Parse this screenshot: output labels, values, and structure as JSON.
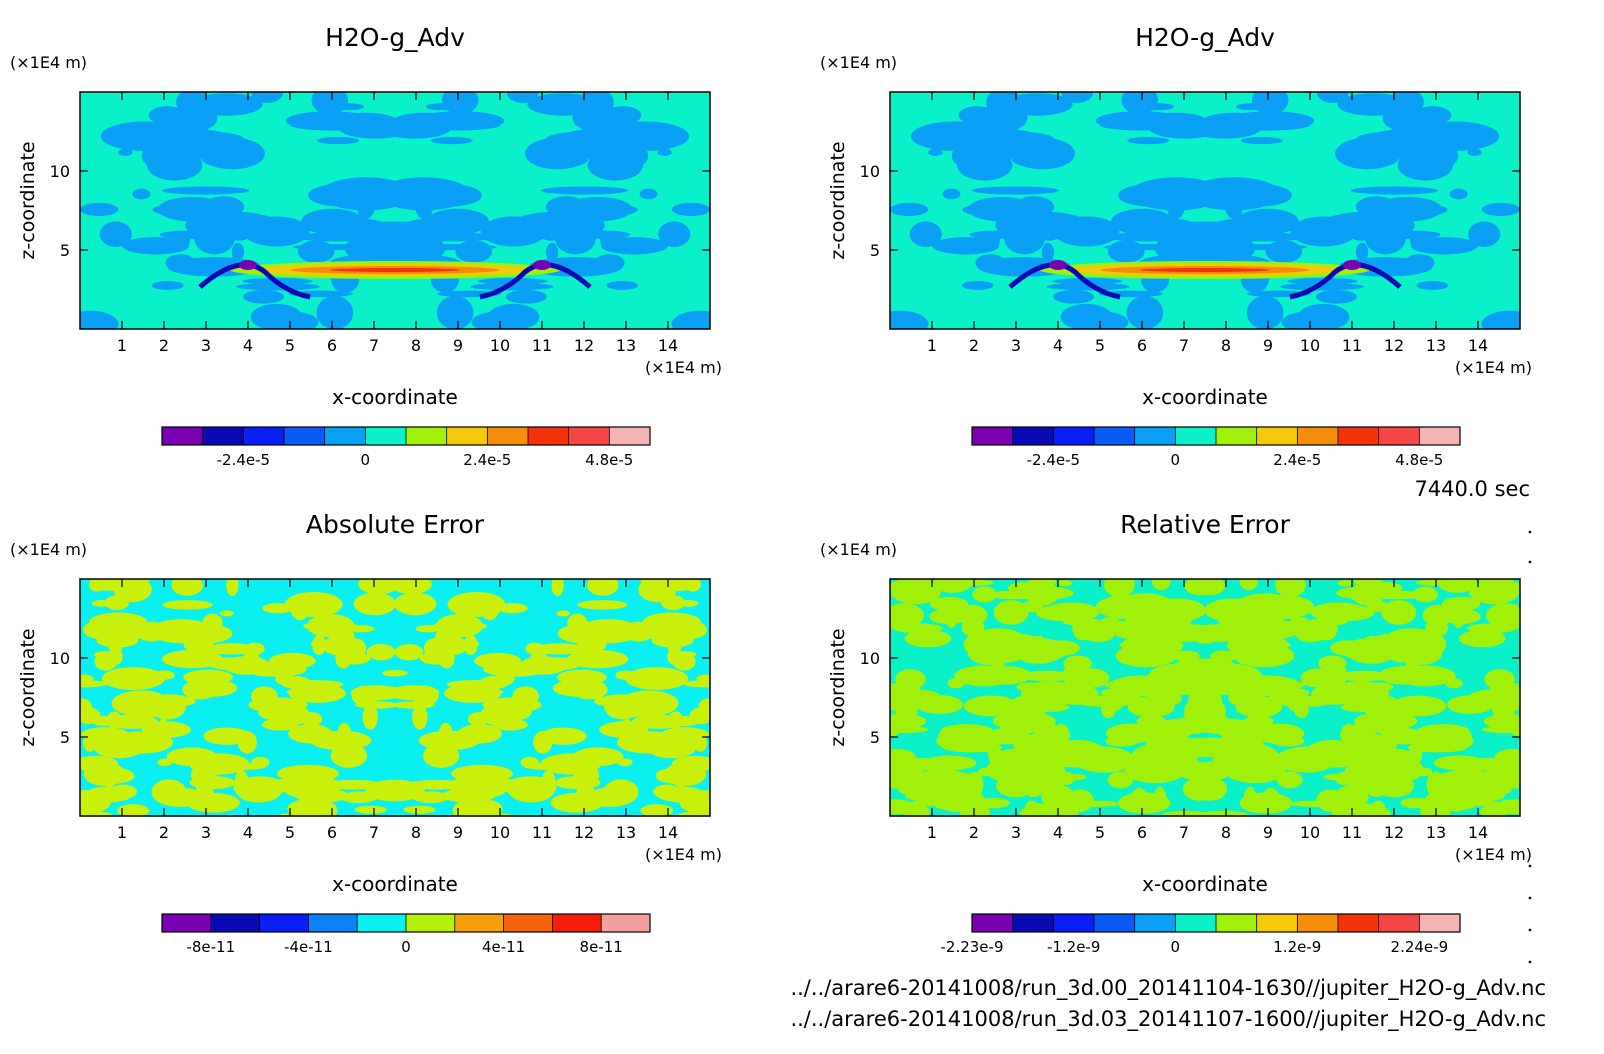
{
  "chart_data": [
    {
      "type": "heatmap",
      "title": "H2O-g_Adv",
      "xlabel": "x-coordinate",
      "ylabel": "z-coordinate",
      "x_unit": "(×1E4 m)",
      "y_unit": "(×1E4 m)",
      "xlim": [
        0,
        15
      ],
      "ylim": [
        0,
        15
      ],
      "x_ticks": [
        1,
        2,
        3,
        4,
        5,
        6,
        7,
        8,
        9,
        10,
        11,
        12,
        13,
        14
      ],
      "y_ticks": [
        5,
        10
      ],
      "colorbar": {
        "colors": [
          "#7a00b4",
          "#0a0ab4",
          "#0a1ef5",
          "#0a5af5",
          "#0aa0f5",
          "#0af0c8",
          "#a0f00a",
          "#f5c80a",
          "#f58c0a",
          "#f5320a",
          "#f54646",
          "#f5b4b4"
        ],
        "tick_labels": [
          "-2.4e-5",
          "0",
          "2.4e-5",
          "4.8e-5"
        ],
        "tick_bins": [
          2,
          5,
          8,
          11
        ]
      },
      "field": {
        "background": "#0af0c8",
        "patch": "#0aa0f5",
        "n_patch": 1,
        "accent": true
      }
    },
    {
      "type": "heatmap",
      "title": "H2O-g_Adv",
      "xlabel": "x-coordinate",
      "ylabel": "z-coordinate",
      "x_unit": "(×1E4 m)",
      "y_unit": "(×1E4 m)",
      "xlim": [
        0,
        15
      ],
      "ylim": [
        0,
        15
      ],
      "x_ticks": [
        1,
        2,
        3,
        4,
        5,
        6,
        7,
        8,
        9,
        10,
        11,
        12,
        13,
        14
      ],
      "y_ticks": [
        5,
        10
      ],
      "colorbar": {
        "colors": [
          "#7a00b4",
          "#0a0ab4",
          "#0a1ef5",
          "#0a5af5",
          "#0aa0f5",
          "#0af0c8",
          "#a0f00a",
          "#f5c80a",
          "#f58c0a",
          "#f5320a",
          "#f54646",
          "#f5b4b4"
        ],
        "tick_labels": [
          "-2.4e-5",
          "0",
          "2.4e-5",
          "4.8e-5"
        ],
        "tick_bins": [
          2,
          5,
          8,
          11
        ]
      },
      "field": {
        "background": "#0af0c8",
        "patch": "#0aa0f5",
        "n_patch": 1,
        "accent": true
      }
    },
    {
      "type": "heatmap",
      "title": "Absolute Error",
      "xlabel": "x-coordinate",
      "ylabel": "z-coordinate",
      "x_unit": "(×1E4 m)",
      "y_unit": "(×1E4 m)",
      "xlim": [
        0,
        15
      ],
      "ylim": [
        0,
        15
      ],
      "x_ticks": [
        1,
        2,
        3,
        4,
        5,
        6,
        7,
        8,
        9,
        10,
        11,
        12,
        13,
        14
      ],
      "y_ticks": [
        5,
        10
      ],
      "colorbar": {
        "colors": [
          "#7a00b4",
          "#0a0ab4",
          "#0a1ef5",
          "#0a82f5",
          "#0af0f0",
          "#b4f00a",
          "#f5a00a",
          "#f5640a",
          "#f51e0a",
          "#f5a0a0"
        ],
        "tick_labels": [
          "-8e-11",
          "-4e-11",
          "0",
          "4e-11",
          "8e-11"
        ],
        "tick_bins": [
          1,
          3,
          5,
          7,
          9
        ]
      },
      "field": {
        "background": "#0af0f0",
        "patch": "#c8f00a",
        "n_patch": 2,
        "accent": false
      }
    },
    {
      "type": "heatmap",
      "title": "Relative Error",
      "xlabel": "x-coordinate",
      "ylabel": "z-coordinate",
      "x_unit": "(×1E4 m)",
      "y_unit": "(×1E4 m)",
      "xlim": [
        0,
        15
      ],
      "ylim": [
        0,
        15
      ],
      "x_ticks": [
        1,
        2,
        3,
        4,
        5,
        6,
        7,
        8,
        9,
        10,
        11,
        12,
        13,
        14
      ],
      "y_ticks": [
        5,
        10
      ],
      "colorbar": {
        "colors": [
          "#7a00b4",
          "#0a0ab4",
          "#0a1ef5",
          "#0a5af5",
          "#0aa0f5",
          "#0af0c8",
          "#a0f00a",
          "#f5c80a",
          "#f58c0a",
          "#f5320a",
          "#f54646",
          "#f5b4b4"
        ],
        "tick_labels": [
          "-2.23e-9",
          "-1.2e-9",
          "0",
          "1.2e-9",
          "2.24e-9"
        ],
        "tick_bins": [
          0,
          2.5,
          5,
          8,
          11
        ]
      },
      "field": {
        "background": "#0af0c8",
        "patch": "#a0f00a",
        "n_patch": 3,
        "accent": false
      }
    }
  ],
  "time_label": "7440.0 sec",
  "files": [
    "../../arare6-20141008/run_3d.00_20141104-1630//jupiter_H2O-g_Adv.nc",
    "../../arare6-20141008/run_3d.03_20141107-1600//jupiter_H2O-g_Adv.nc"
  ]
}
